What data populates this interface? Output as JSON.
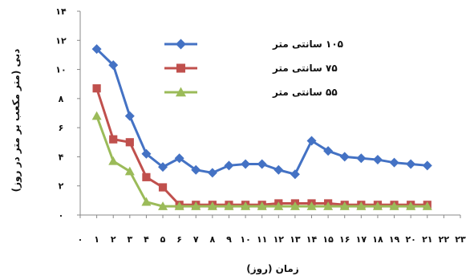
{
  "chart_data": {
    "type": "line",
    "xlabel": "زمان (روز)",
    "ylabel": "دبی (متر مکعب بر متر در روز)",
    "xlim": [
      0,
      23
    ],
    "ylim": [
      0,
      14
    ],
    "x_tick_labels": [
      "۰",
      "۱",
      "۲",
      "۳",
      "۴",
      "۵",
      "۶",
      "۷",
      "۸",
      "۹",
      "۱۰",
      "۱۱",
      "۱۲",
      "۱۳",
      "۱۴",
      "۱۵",
      "۱۶",
      "۱۷",
      "۱۸",
      "۱۹",
      "۲۰",
      "۲۱",
      "۲۲",
      "۲۳"
    ],
    "y_tick_labels": [
      "۰",
      "۲",
      "۴",
      "۶",
      "۸",
      "۱۰",
      "۱۲",
      "۱۴"
    ],
    "grid": false,
    "legend_position": "top-center",
    "x": [
      1,
      2,
      3,
      4,
      5,
      6,
      7,
      8,
      9,
      10,
      11,
      12,
      13,
      14,
      15,
      16,
      17,
      18,
      19,
      20,
      21
    ],
    "series": [
      {
        "name": "۱۰۵ سانتی متر",
        "color": "#4472C4",
        "marker": "diamond",
        "values": [
          11.4,
          10.3,
          6.8,
          4.2,
          3.3,
          3.9,
          3.1,
          2.9,
          3.4,
          3.5,
          3.5,
          3.1,
          2.8,
          5.1,
          4.4,
          4.0,
          3.9,
          3.8,
          3.6,
          3.5,
          3.4
        ]
      },
      {
        "name": "۷۵ سانتی متر",
        "color": "#C0504D",
        "marker": "square",
        "values": [
          8.7,
          5.2,
          5.0,
          2.6,
          1.9,
          0.7,
          0.7,
          0.7,
          0.7,
          0.7,
          0.7,
          0.8,
          0.8,
          0.8,
          0.8,
          0.7,
          0.7,
          0.7,
          0.7,
          0.7,
          0.7
        ]
      },
      {
        "name": "۵۵ سانتی متر",
        "color": "#9BBB59",
        "marker": "triangle",
        "values": [
          6.8,
          3.7,
          3.0,
          0.9,
          0.6,
          0.6,
          0.6,
          0.6,
          0.6,
          0.6,
          0.6,
          0.6,
          0.6,
          0.6,
          0.6,
          0.6,
          0.6,
          0.6,
          0.6,
          0.6,
          0.6
        ]
      }
    ]
  }
}
